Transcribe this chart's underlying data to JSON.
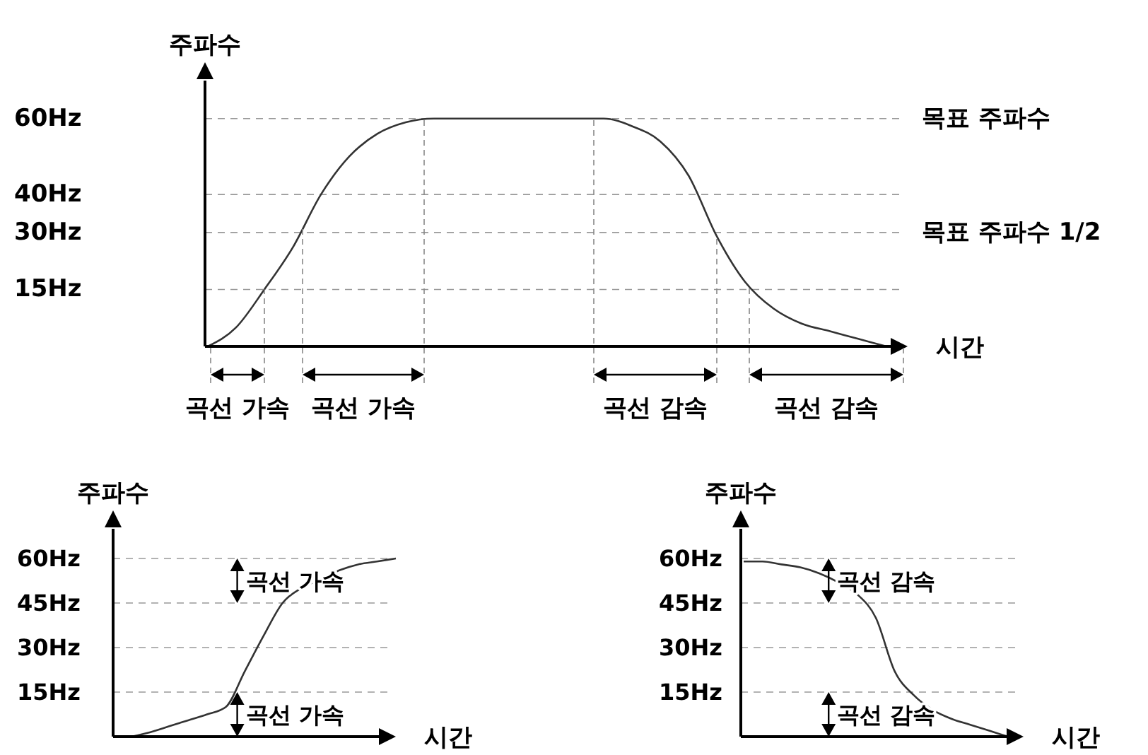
{
  "chart_data": [
    {
      "type": "line",
      "xlabel": "시간",
      "ylabel": "주파수",
      "categories": [
        null,
        null,
        null,
        null,
        null,
        null,
        null,
        null,
        null,
        null,
        null,
        null,
        null,
        null,
        null,
        null,
        null,
        null,
        null,
        null,
        null,
        null,
        null,
        null,
        null
      ],
      "series": [
        {
          "color": "#333333",
          "values": [
            0,
            5,
            15,
            26,
            40,
            50,
            56,
            59,
            60,
            60,
            60,
            60,
            60,
            60,
            60,
            58,
            54,
            45,
            29,
            17,
            10,
            6,
            4,
            2,
            0
          ]
        }
      ],
      "ylim": [
        0,
        70
      ],
      "yticks": [
        {
          "value": 15,
          "label": "15Hz"
        },
        {
          "value": 30,
          "label": "30Hz"
        },
        {
          "value": 40,
          "label": "40Hz"
        },
        {
          "value": 60,
          "label": "60Hz"
        }
      ],
      "tick_labels": "y",
      "grid": "y",
      "line_style": "solid",
      "annotations": [
        "목표 주파수",
        "목표 주파수 1/2",
        "곡선 가속",
        "곡선 가속",
        "곡선 감속",
        "곡선 감속"
      ]
    },
    {
      "type": "line",
      "xlabel": "시간",
      "ylabel": "주파수",
      "categories": [
        null,
        null,
        null,
        null,
        null,
        null,
        null,
        null,
        null,
        null,
        null,
        null,
        null,
        null,
        null
      ],
      "series": [
        {
          "color": "#333333",
          "values": [
            0,
            1.5,
            3.5,
            5.5,
            7.5,
            10,
            22,
            34,
            45,
            50,
            53,
            56,
            58,
            59,
            60
          ]
        }
      ],
      "ylim": [
        0,
        70
      ],
      "yticks": [
        {
          "value": 15,
          "label": "15Hz"
        },
        {
          "value": 30,
          "label": "30Hz"
        },
        {
          "value": 45,
          "label": "45Hz"
        },
        {
          "value": 60,
          "label": "60Hz"
        }
      ],
      "tick_labels": "y",
      "grid": "y",
      "line_style": "solid",
      "annotations": [
        "곡선 가속",
        "곡선 가속"
      ]
    },
    {
      "type": "line",
      "xlabel": "시간",
      "ylabel": "주파수",
      "categories": [
        null,
        null,
        null,
        null,
        null,
        null,
        null,
        null,
        null,
        null,
        null,
        null,
        null,
        null,
        null
      ],
      "series": [
        {
          "color": "#333333",
          "values": [
            59,
            59,
            58,
            57,
            55,
            52,
            48,
            40,
            22,
            14,
            9,
            6,
            4,
            2,
            0
          ]
        }
      ],
      "ylim": [
        0,
        70
      ],
      "yticks": [
        {
          "value": 15,
          "label": "15Hz"
        },
        {
          "value": 30,
          "label": "30Hz"
        },
        {
          "value": 45,
          "label": "45Hz"
        },
        {
          "value": 60,
          "label": "60Hz"
        }
      ],
      "tick_labels": "y",
      "grid": "y",
      "line_style": "solid",
      "annotations": [
        "곡선 감속",
        "곡선 감속"
      ]
    }
  ]
}
